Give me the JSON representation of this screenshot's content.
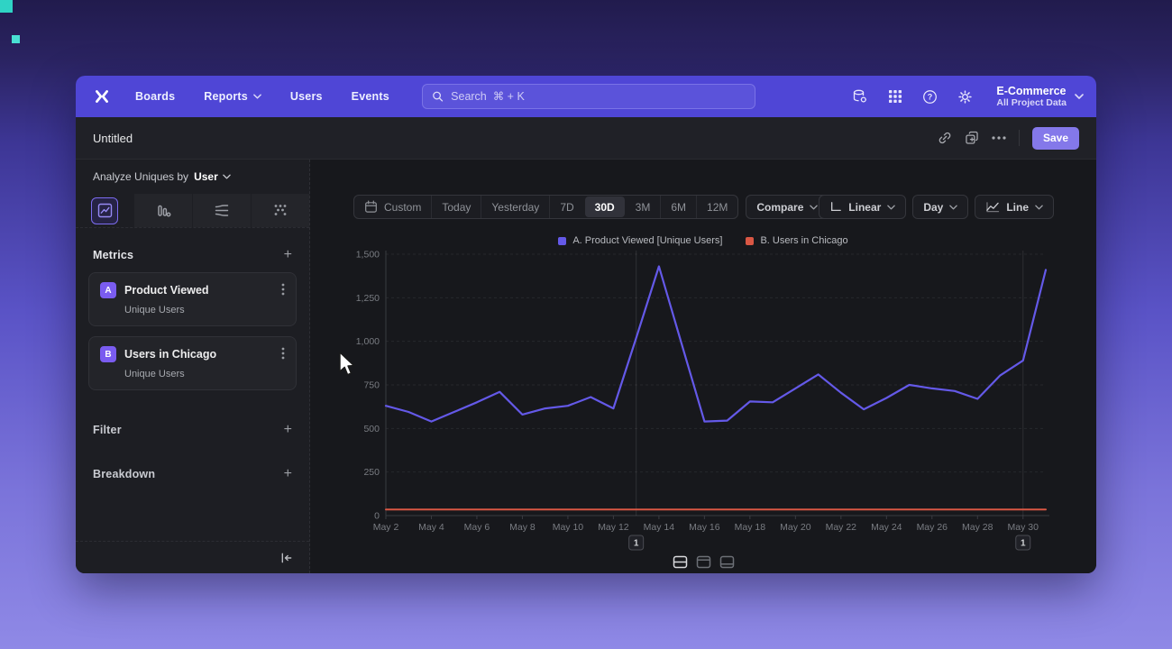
{
  "colors": {
    "accent": "#4f46d6",
    "save_button": "#8478ea",
    "series_a": "#6459e8",
    "series_b": "#d95744",
    "selected_tab_border": "#7c6cf0"
  },
  "nav": {
    "items": [
      {
        "label": "Boards"
      },
      {
        "label": "Reports"
      },
      {
        "label": "Users"
      },
      {
        "label": "Events"
      }
    ],
    "search_placeholder": "Search  ⌘ + K",
    "project_name": "E-Commerce",
    "project_subtitle": "All Project Data"
  },
  "header": {
    "title": "Untitled",
    "save_label": "Save"
  },
  "sidebar": {
    "analyze_prefix": "Analyze Uniques by",
    "analyze_value": "User",
    "metrics_title": "Metrics",
    "metrics": [
      {
        "badge": "A",
        "name": "Product Viewed",
        "subtitle": "Unique Users"
      },
      {
        "badge": "B",
        "name": "Users in Chicago",
        "subtitle": "Unique Users"
      }
    ],
    "filter_title": "Filter",
    "breakdown_title": "Breakdown",
    "chart_tabs": [
      "line-chart",
      "bar-chart",
      "flow-chart",
      "scatter-chart"
    ],
    "selected_tab": 0
  },
  "toolbar": {
    "date_ranges": [
      "Custom",
      "Today",
      "Yesterday",
      "7D",
      "30D",
      "3M",
      "6M",
      "12M"
    ],
    "selected_range": "30D",
    "compare_label": "Compare",
    "scale_label": "Linear",
    "interval_label": "Day",
    "chart_type_label": "Line"
  },
  "chart_data": {
    "type": "line",
    "x": [
      "May 2",
      "May 3",
      "May 4",
      "May 5",
      "May 6",
      "May 7",
      "May 8",
      "May 9",
      "May 10",
      "May 11",
      "May 12",
      "May 13",
      "May 14",
      "May 15",
      "May 16",
      "May 17",
      "May 18",
      "May 19",
      "May 20",
      "May 21",
      "May 22",
      "May 23",
      "May 24",
      "May 25",
      "May 26",
      "May 27",
      "May 28",
      "May 29",
      "May 30",
      "May 31"
    ],
    "series": [
      {
        "name": "A. Product Viewed [Unique Users]",
        "color": "#6459e8",
        "values": [
          630,
          595,
          540,
          595,
          650,
          710,
          580,
          615,
          630,
          680,
          615,
          1020,
          1430,
          985,
          540,
          545,
          655,
          650,
          730,
          810,
          705,
          610,
          675,
          750,
          730,
          715,
          670,
          805,
          890,
          1410
        ]
      },
      {
        "name": "B. Users in Chicago",
        "color": "#d95744",
        "values": [
          35,
          35,
          35,
          35,
          35,
          35,
          35,
          35,
          35,
          35,
          35,
          35,
          35,
          35,
          35,
          35,
          35,
          35,
          35,
          35,
          35,
          35,
          35,
          35,
          35,
          35,
          35,
          35,
          35,
          35
        ]
      }
    ],
    "ylim": [
      0,
      1500
    ],
    "ytick_labels": [
      "1,500",
      "1,250",
      "1,000",
      "750",
      "500",
      "250",
      "0"
    ],
    "xtick_every": 2,
    "grid": "horizontal-dashed",
    "legend_position": "top-center",
    "annotations": [
      {
        "label": "1",
        "x": "May 13"
      },
      {
        "label": "1",
        "x": "May 30"
      }
    ]
  }
}
